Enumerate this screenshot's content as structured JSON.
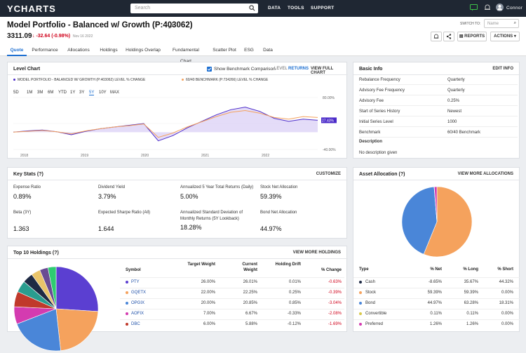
{
  "nav": {
    "logo": "YCHARTS",
    "search_placeholder": "Search",
    "links": [
      "DATA",
      "TOOLS",
      "SUPPORT"
    ],
    "user": "Connor"
  },
  "header": {
    "title": "Model Portfolio - Balanced w/ Growth (P:403062)",
    "price": "3311.09",
    "change": "↓ -32.64 (-0.98%)",
    "date": "Nov 16 2022",
    "switch_to": "SWITCH TO:",
    "name_placeholder": "Name",
    "reports": "REPORTS",
    "actions": "ACTIONS ▾"
  },
  "tabs": [
    "Quote",
    "Performance",
    "Allocations",
    "Holdings",
    "Holdings Overlap",
    "Fundamental Chart",
    "Scatter Plot",
    "ESG",
    "Data"
  ],
  "level_chart": {
    "title": "Level Chart",
    "show_benchmark": "Show Benchmark Comparison",
    "level": "LEVEL",
    "returns": "RETURNS",
    "view_full": "VIEW FULL CHART",
    "legend_portfolio": "MODEL PORTFOLIO - BALANCED W/ GROWTH (P:403062) LEVEL % CHANGE",
    "legend_benchmark": "60/40 BENCHMARK (P:734266) LEVEL % CHANGE",
    "ranges": [
      "5D",
      "1M",
      "3M",
      "6M",
      "YTD",
      "1Y",
      "3Y",
      "5Y",
      "10Y",
      "MAX"
    ],
    "selected_range": "5Y",
    "colors": {
      "portfolio": "#4b2bc9",
      "benchmark": "#f5a25d",
      "fill": "#d9cdf5"
    }
  },
  "chart_data": {
    "type": "line",
    "x_labels": [
      "2018",
      "2019",
      "2020",
      "2021",
      "2022"
    ],
    "y_labels": [
      "80.00%",
      "27.43%",
      "-40.00%"
    ],
    "current_value": "27.43%",
    "series": [
      {
        "name": "MODEL PORTFOLIO - BALANCED W/ GROWTH (P:403062) LEVEL % CHANGE",
        "values": [
          0,
          3,
          5,
          1,
          -6,
          2,
          8,
          12,
          16,
          20,
          -20,
          -8,
          10,
          25,
          40,
          52,
          58,
          48,
          32,
          25,
          30,
          27.43
        ]
      },
      {
        "name": "60/40 BENCHMARK (P:734266) LEVEL % CHANGE",
        "values": [
          0,
          2,
          4,
          1,
          -4,
          3,
          8,
          12,
          15,
          19,
          -12,
          -2,
          12,
          24,
          36,
          46,
          50,
          44,
          34,
          30,
          36,
          34
        ]
      }
    ]
  },
  "basic_info": {
    "title": "Basic Info",
    "edit": "EDIT INFO",
    "rows": [
      {
        "k": "Rebalance Frequency",
        "v": "Quarterly"
      },
      {
        "k": "Advisory Fee Frequency",
        "v": "Quarterly"
      },
      {
        "k": "Advisory Fee",
        "v": "0.25%"
      },
      {
        "k": "Start of Series History",
        "v": "Newest"
      },
      {
        "k": "Initial Series Level",
        "v": "1000"
      },
      {
        "k": "Benchmark",
        "v": "60/40 Benchmark"
      }
    ],
    "description_label": "Description",
    "description": "No description given"
  },
  "key_stats": {
    "title": "Key Stats",
    "help": "(?)",
    "customize": "CUSTOMIZE",
    "items": [
      {
        "label": "Expense Ratio",
        "value": "0.89%"
      },
      {
        "label": "Dividend Yield",
        "value": "3.79%"
      },
      {
        "label": "Annualized 5 Year Total Returns (Daily)",
        "value": "5.00%"
      },
      {
        "label": "Stock Net Allocation",
        "value": "59.39%"
      },
      {
        "label": "Beta (3Y)",
        "value": "1.363"
      },
      {
        "label": "Expected Sharpe Ratio (All)",
        "value": "1.644"
      },
      {
        "label": "Annualized Standard Deviation of Monthly Returns (5Y Lookback)",
        "value": "18.28%"
      },
      {
        "label": "Bond Net Allocation",
        "value": "44.97%"
      }
    ]
  },
  "asset_allocation": {
    "title": "Asset Allocation",
    "help": "(?)",
    "view_more": "VIEW MORE ALLOCATIONS",
    "headers": [
      "Type",
      "% Net",
      "% Long",
      "% Short"
    ],
    "rows": [
      {
        "type": "Cash",
        "net": "-8.65%",
        "long": "35.67%",
        "short": "44.32%",
        "color": "#1f2a44"
      },
      {
        "type": "Stock",
        "net": "59.39%",
        "long": "59.39%",
        "short": "0.00%",
        "color": "#f5a25d"
      },
      {
        "type": "Bond",
        "net": "44.97%",
        "long": "63.28%",
        "short": "18.31%",
        "color": "#4a86d8"
      },
      {
        "type": "Convertible",
        "net": "0.11%",
        "long": "0.11%",
        "short": "0.00%",
        "color": "#d9c84a"
      },
      {
        "type": "Preferred",
        "net": "1.26%",
        "long": "1.26%",
        "short": "0.00%",
        "color": "#d43bb0"
      }
    ]
  },
  "holdings": {
    "title": "Top 10 Holdings",
    "help": "(?)",
    "view_more": "VIEW MORE HOLDINGS",
    "headers": [
      "Symbol",
      "Target Weight",
      "Current Weight",
      "Holding Drift",
      "% Change"
    ],
    "rows": [
      {
        "sym": "PTY",
        "target": "26.00%",
        "current": "26.01%",
        "drift": "0.01%",
        "chg": "-0.63%",
        "color": "#5b3fd1"
      },
      {
        "sym": "GQETX",
        "target": "22.00%",
        "current": "22.25%",
        "drift": "0.25%",
        "chg": "-0.39%",
        "color": "#f5a25d"
      },
      {
        "sym": "OPGIX",
        "target": "20.00%",
        "current": "20.85%",
        "drift": "0.85%",
        "chg": "-3.04%",
        "color": "#4a86d8"
      },
      {
        "sym": "AOFIX",
        "target": "7.00%",
        "current": "6.67%",
        "drift": "-0.33%",
        "chg": "-2.08%",
        "color": "#d43bb0"
      },
      {
        "sym": "DBC",
        "target": "6.00%",
        "current": "5.88%",
        "drift": "-0.12%",
        "chg": "-1.69%",
        "color": "#c0392b"
      }
    ]
  }
}
